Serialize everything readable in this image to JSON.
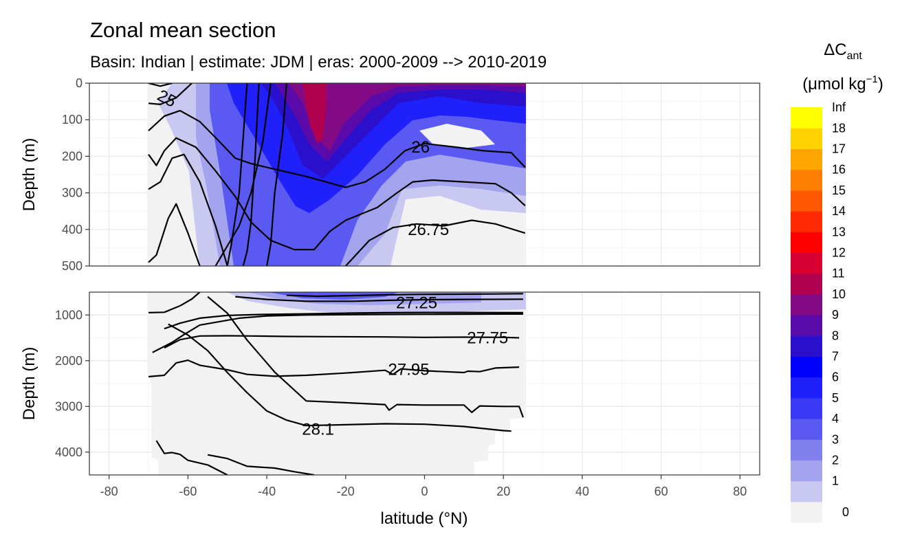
{
  "chart_data": {
    "type": "heatmap",
    "title": "Zonal mean section",
    "subtitle": "Basin: Indian | estimate: JDM  | eras: 2000-2009 --> 2010-2019",
    "xlabel": "latitude (°N)",
    "xlim": [
      -85,
      85
    ],
    "x_ticks": [
      -80,
      -60,
      -40,
      -20,
      0,
      20,
      40,
      60,
      80
    ],
    "x_tick_labels": [
      "-80",
      "-60",
      "-40",
      "-20",
      "0",
      "20",
      "40",
      "60",
      "80"
    ],
    "data_lat_range": [
      -70,
      25.5
    ],
    "panels": [
      {
        "name": "upper",
        "ylabel": "Depth (m)",
        "ylim": [
          0,
          500
        ],
        "y_ticks": [
          0,
          100,
          200,
          300,
          400,
          500
        ],
        "y_tick_labels": [
          "0",
          "100",
          "200",
          "300",
          "400",
          "500"
        ]
      },
      {
        "name": "lower",
        "ylabel": "Depth (m)",
        "ylim": [
          500,
          4500
        ],
        "y_ticks": [
          1000,
          2000,
          3000,
          4000
        ],
        "y_tick_labels": [
          "1000",
          "2000",
          "3000",
          "4000"
        ]
      }
    ],
    "legend": {
      "title_main": "ΔC",
      "title_sub": "ant",
      "unit": "(μmol kg",
      "unit_sup": "−1",
      "unit_close": ")",
      "position": "right",
      "labels": [
        "0",
        "1",
        "2",
        "3",
        "4",
        "5",
        "6",
        "7",
        "8",
        "9",
        "10",
        "11",
        "12",
        "13",
        "14",
        "15",
        "16",
        "17",
        "18",
        "Inf"
      ],
      "colors": [
        "#f2f2f2",
        "#c8c8f0",
        "#a4a4ee",
        "#8080ee",
        "#5a5af2",
        "#3a3af5",
        "#2020fa",
        "#0000ff",
        "#2a10cc",
        "#5a0aa8",
        "#830a85",
        "#b00050",
        "#d70030",
        "#ff0000",
        "#ff2a00",
        "#ff5800",
        "#ff8000",
        "#ffa500",
        "#ffd200",
        "#ffff00"
      ]
    },
    "contour_labels": [
      {
        "text": "25",
        "lat": -66,
        "depth": 40,
        "panel": "upper"
      },
      {
        "text": "26",
        "lat": -1,
        "depth": 175,
        "panel": "upper"
      },
      {
        "text": "26.75",
        "lat": 1,
        "depth": 400,
        "panel": "upper"
      },
      {
        "text": "27.25",
        "lat": -2,
        "depth": 730,
        "panel": "lower"
      },
      {
        "text": "27.75",
        "lat": 16,
        "depth": 1500,
        "panel": "lower"
      },
      {
        "text": "27.95",
        "lat": -4,
        "depth": 2190,
        "panel": "lower"
      },
      {
        "text": "28.1",
        "lat": -27,
        "depth": 3500,
        "panel": "lower"
      }
    ],
    "contours_upper": [
      [
        [
          -70,
          0
        ],
        [
          -67,
          8
        ],
        [
          -64,
          0
        ]
      ],
      [
        [
          -70,
          55
        ],
        [
          -67,
          58
        ],
        [
          -63,
          40
        ],
        [
          -60,
          10
        ],
        [
          -59,
          0
        ]
      ],
      [
        [
          -70,
          130
        ],
        [
          -66,
          90
        ],
        [
          -62,
          75
        ],
        [
          -57,
          105
        ],
        [
          -52,
          160
        ],
        [
          -48,
          205
        ],
        [
          -44,
          220
        ],
        [
          -40,
          230
        ],
        [
          -30,
          255
        ],
        [
          -20,
          285
        ],
        [
          -15,
          270
        ],
        [
          -10,
          235
        ],
        [
          -5,
          185
        ],
        [
          0,
          165
        ],
        [
          8,
          175
        ],
        [
          15,
          185
        ],
        [
          22,
          190
        ],
        [
          25.5,
          230
        ]
      ],
      [
        [
          -70,
          195
        ],
        [
          -68,
          225
        ],
        [
          -66,
          185
        ],
        [
          -63,
          150
        ],
        [
          -58,
          175
        ],
        [
          -53,
          240
        ],
        [
          -48,
          310
        ],
        [
          -44,
          380
        ],
        [
          -39,
          430
        ],
        [
          -33,
          455
        ],
        [
          -28,
          455
        ],
        [
          -24,
          405
        ],
        [
          -20,
          375
        ],
        [
          -12,
          340
        ],
        [
          -7,
          300
        ],
        [
          -3,
          270
        ],
        [
          2,
          265
        ],
        [
          10,
          270
        ],
        [
          18,
          275
        ],
        [
          22,
          300
        ],
        [
          25.5,
          335
        ]
      ],
      [
        [
          -70,
          290
        ],
        [
          -67,
          270
        ],
        [
          -64,
          205
        ],
        [
          -61,
          195
        ],
        [
          -57,
          270
        ],
        [
          -53,
          390
        ],
        [
          -50,
          500
        ]
      ],
      [
        [
          -70,
          490
        ],
        [
          -68,
          470
        ],
        [
          -65,
          370
        ],
        [
          -63,
          330
        ],
        [
          -60,
          410
        ],
        [
          -57,
          500
        ]
      ],
      [
        [
          -53,
          500
        ],
        [
          -47,
          390
        ],
        [
          -44,
          300
        ],
        [
          -41,
          160
        ],
        [
          -39,
          0
        ]
      ],
      [
        [
          -50,
          500
        ],
        [
          -49,
          440
        ],
        [
          -47,
          300
        ],
        [
          -45,
          0
        ]
      ],
      [
        [
          -46,
          500
        ],
        [
          -45,
          460
        ],
        [
          -44,
          380
        ],
        [
          -43,
          210
        ],
        [
          -42,
          0
        ]
      ],
      [
        [
          -40,
          500
        ],
        [
          -39,
          440
        ],
        [
          -38,
          300
        ],
        [
          -36,
          140
        ],
        [
          -35,
          0
        ]
      ],
      [
        [
          -20,
          500
        ],
        [
          -14,
          430
        ],
        [
          -8,
          395
        ],
        [
          -2,
          385
        ],
        [
          5,
          390
        ],
        [
          12,
          375
        ],
        [
          18,
          385
        ],
        [
          25.5,
          410
        ]
      ]
    ],
    "contours_lower": [
      [
        [
          -35,
          570
        ],
        [
          -27,
          590
        ],
        [
          -18,
          575
        ],
        [
          -10,
          560
        ],
        [
          -2,
          550
        ],
        [
          8,
          545
        ],
        [
          18,
          540
        ],
        [
          25,
          535
        ]
      ],
      [
        [
          -48,
          600
        ],
        [
          -40,
          660
        ],
        [
          -30,
          700
        ],
        [
          -18,
          700
        ],
        [
          -10,
          680
        ],
        [
          0,
          665
        ],
        [
          10,
          660
        ],
        [
          25,
          655
        ]
      ],
      [
        [
          -70,
          950
        ],
        [
          -66,
          940
        ],
        [
          -62,
          800
        ],
        [
          -59,
          650
        ],
        [
          -57,
          500
        ]
      ],
      [
        [
          -66,
          1300
        ],
        [
          -62,
          1180
        ],
        [
          -57,
          1070
        ],
        [
          -50,
          1010
        ],
        [
          -42,
          990
        ],
        [
          -30,
          975
        ],
        [
          -20,
          960
        ],
        [
          -10,
          950
        ],
        [
          0,
          945
        ],
        [
          10,
          945
        ],
        [
          25,
          950
        ]
      ],
      [
        [
          -66,
          1720
        ],
        [
          -62,
          1540
        ],
        [
          -57,
          1460
        ],
        [
          -50,
          1455
        ],
        [
          -44,
          1460
        ],
        [
          -35,
          1470
        ],
        [
          -25,
          1475
        ],
        [
          -10,
          1480
        ],
        [
          0,
          1490
        ],
        [
          10,
          1485
        ],
        [
          20,
          1490
        ],
        [
          24,
          1500
        ]
      ],
      [
        [
          -69,
          1820
        ],
        [
          -64,
          1600
        ],
        [
          -61,
          1430
        ],
        [
          -57,
          1220
        ],
        [
          -53,
          1160
        ],
        [
          -47,
          1070
        ],
        [
          -40,
          1020
        ],
        [
          -30,
          1000
        ],
        [
          -15,
          990
        ],
        [
          0,
          985
        ],
        [
          20,
          980
        ],
        [
          25,
          980
        ]
      ],
      [
        [
          -70,
          2350
        ],
        [
          -66,
          2320
        ],
        [
          -63,
          2050
        ],
        [
          -60,
          1990
        ],
        [
          -57,
          2100
        ],
        [
          -50,
          2200
        ],
        [
          -45,
          2300
        ],
        [
          -38,
          2340
        ],
        [
          -30,
          2320
        ],
        [
          -20,
          2270
        ],
        [
          -10,
          2210
        ],
        [
          -8,
          2300
        ],
        [
          -6,
          2180
        ],
        [
          0,
          2220
        ],
        [
          10,
          2260
        ],
        [
          11,
          2230
        ],
        [
          14,
          2240
        ],
        [
          18,
          2160
        ],
        [
          24,
          2140
        ]
      ],
      [
        [
          -65,
          1200
        ],
        [
          -60,
          1440
        ],
        [
          -55,
          1780
        ],
        [
          -50,
          2260
        ],
        [
          -45,
          2700
        ],
        [
          -40,
          3100
        ],
        [
          -35,
          3300
        ],
        [
          -30,
          3420
        ],
        [
          -20,
          3400
        ],
        [
          -10,
          3380
        ],
        [
          0,
          3390
        ],
        [
          10,
          3440
        ],
        [
          20,
          3530
        ],
        [
          22,
          3540
        ]
      ],
      [
        [
          -55,
          600
        ],
        [
          -50,
          960
        ],
        [
          -45,
          1550
        ],
        [
          -38,
          2250
        ],
        [
          -30,
          2880
        ],
        [
          -20,
          2920
        ],
        [
          -10,
          2960
        ],
        [
          -9,
          3080
        ],
        [
          -7,
          2960
        ],
        [
          0,
          2970
        ],
        [
          10,
          2970
        ],
        [
          12,
          3130
        ],
        [
          14,
          2990
        ],
        [
          20,
          3000
        ],
        [
          24,
          3000
        ],
        [
          25,
          3240
        ]
      ],
      [
        [
          -68,
          3750
        ],
        [
          -66,
          4030
        ],
        [
          -64,
          4010
        ],
        [
          -62,
          4050
        ],
        [
          -60,
          4180
        ],
        [
          -55,
          4280
        ],
        [
          -50,
          4500
        ]
      ],
      [
        [
          -55,
          4060
        ],
        [
          -50,
          4140
        ],
        [
          -45,
          4310
        ],
        [
          -38,
          4350
        ],
        [
          -33,
          4430
        ],
        [
          -28,
          4500
        ]
      ]
    ]
  }
}
